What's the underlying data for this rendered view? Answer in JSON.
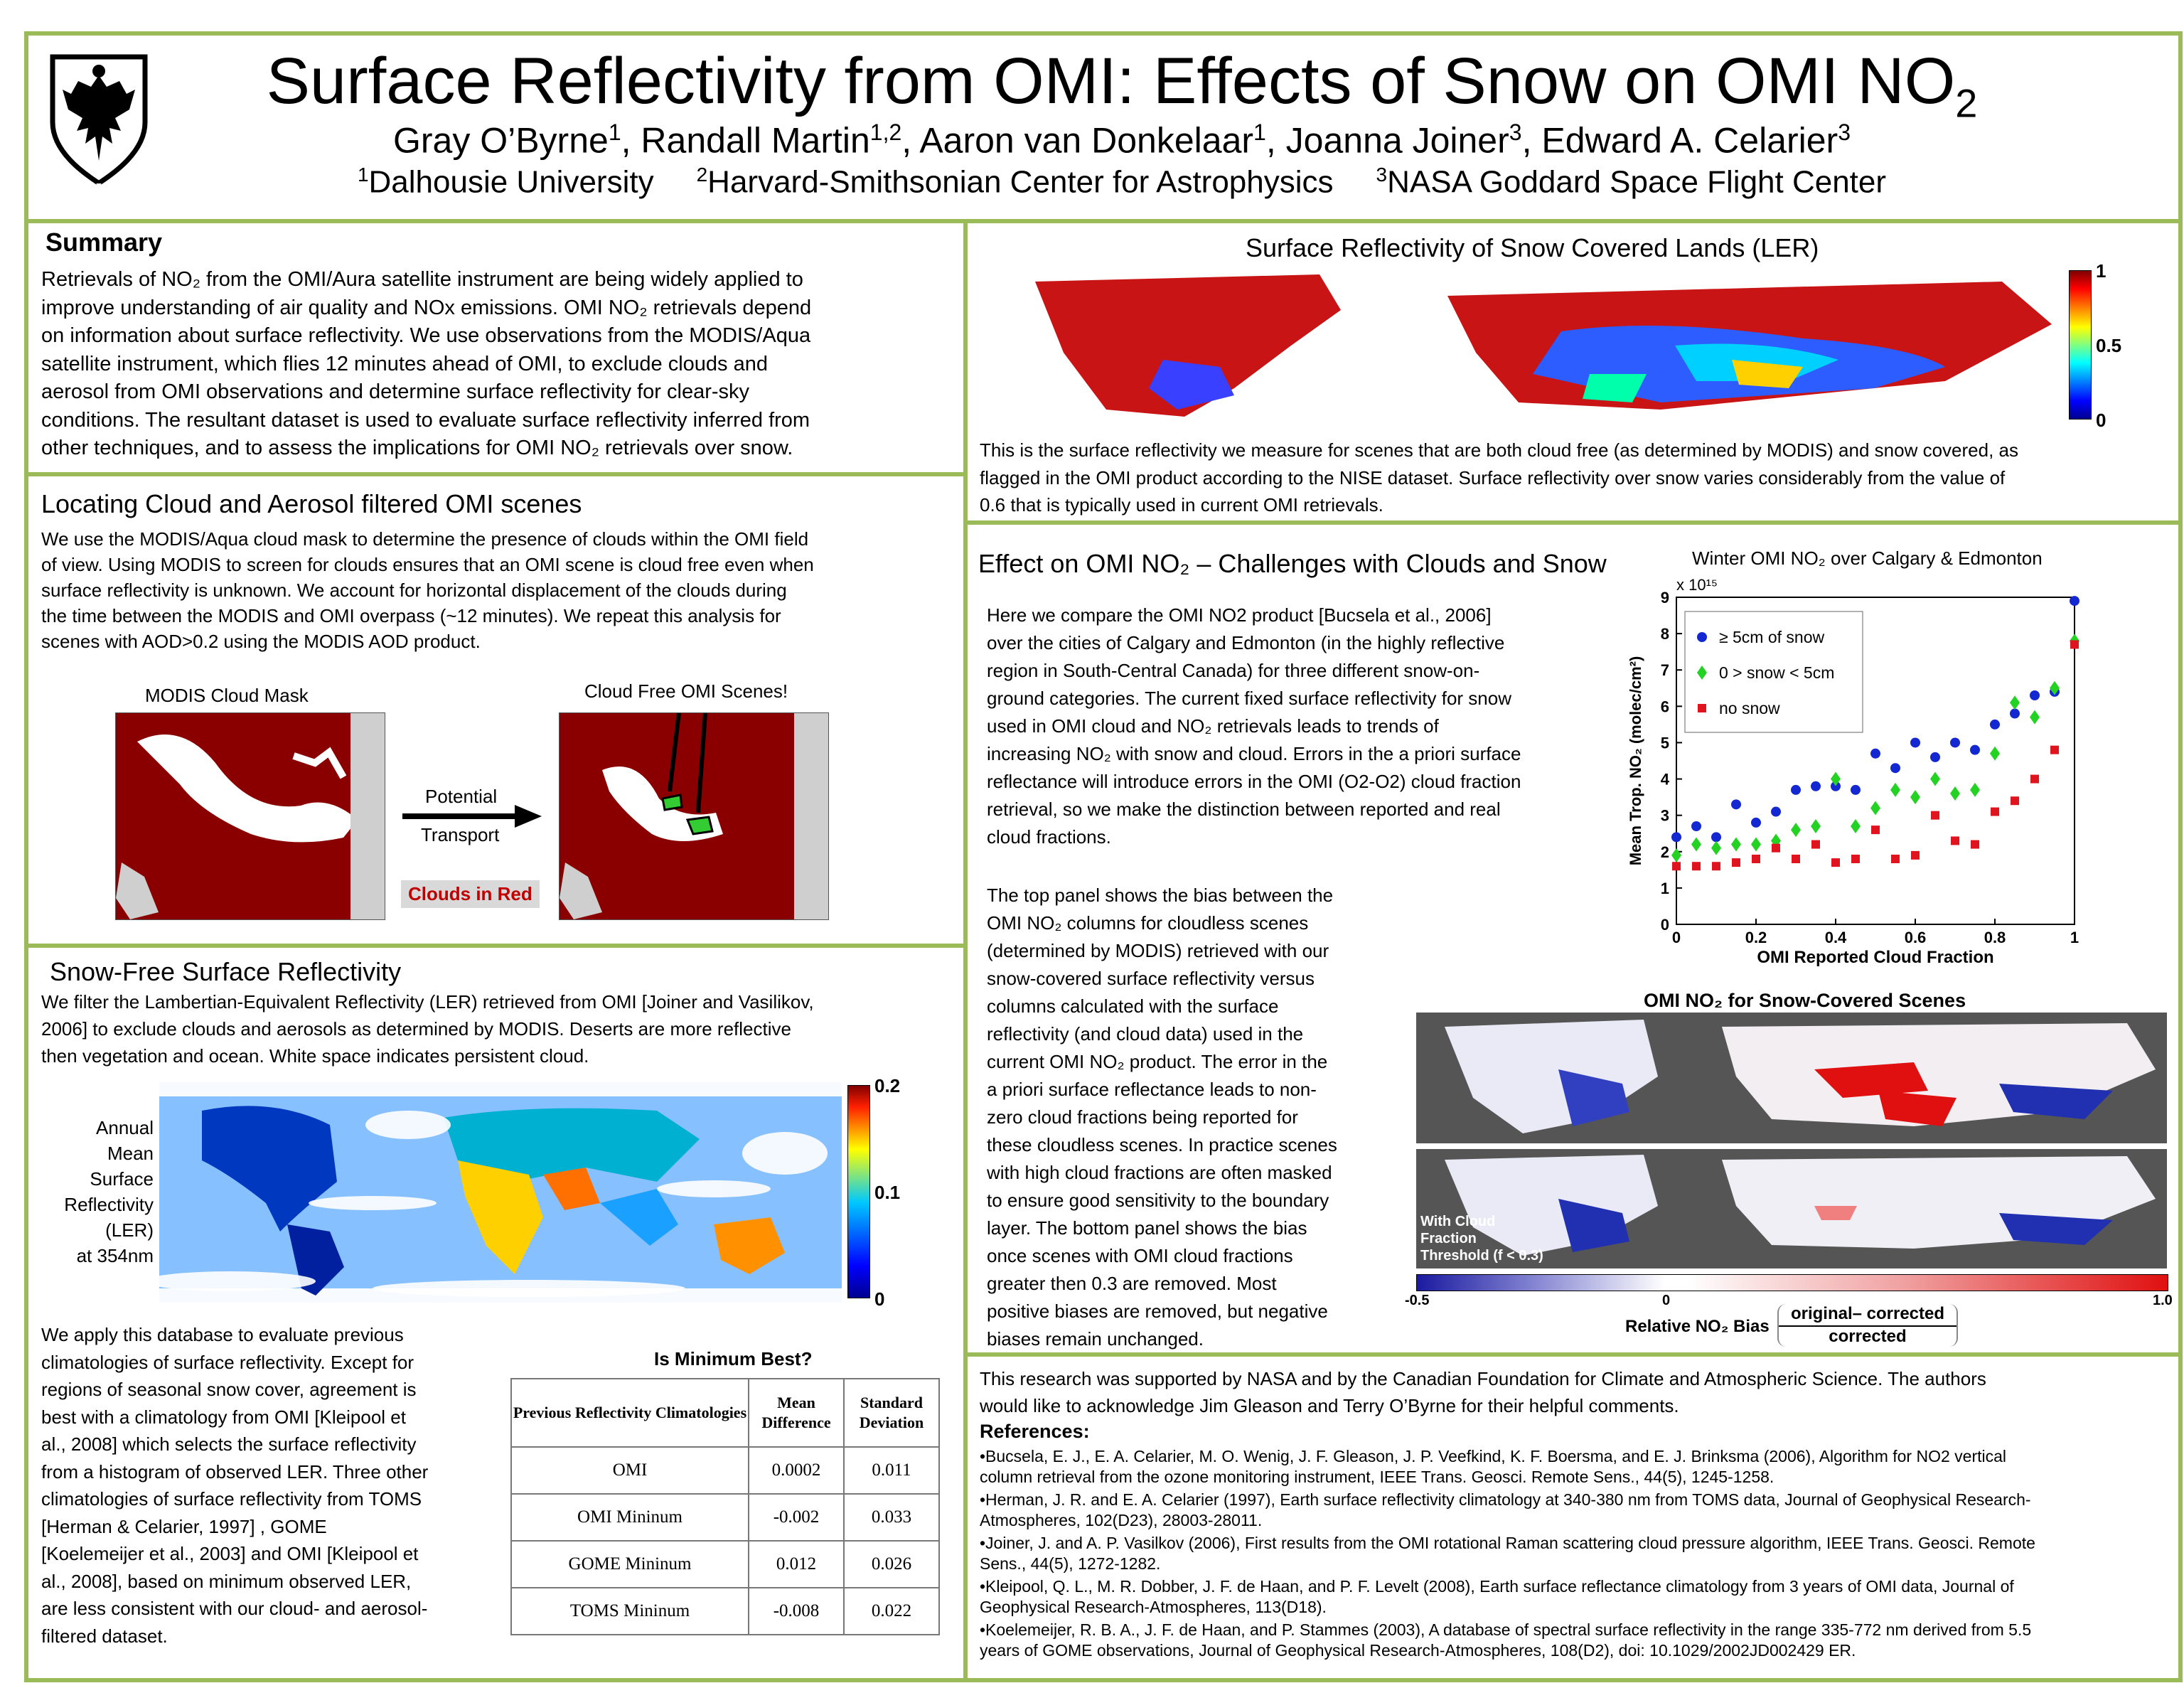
{
  "header": {
    "title_main": "Surface Reflectivity from OMI: Effects of Snow on OMI NO",
    "title_sub": "2",
    "authors": [
      {
        "name": "Gray O’Byrne",
        "sup": "1",
        "sep": ", "
      },
      {
        "name": "Randall Martin",
        "sup": "1,2",
        "sep": ", "
      },
      {
        "name": "Aaron van Donkelaar",
        "sup": "1",
        "sep": ", "
      },
      {
        "name": "Joanna Joiner",
        "sup": "3",
        "sep": ", "
      },
      {
        "name": "Edward A. Celarier",
        "sup": "3",
        "sep": ""
      }
    ],
    "affiliations": [
      {
        "sup": "1",
        "name": "Dalhousie University"
      },
      {
        "sup": "2",
        "name": "Harvard-Smithsonian Center for Astrophysics"
      },
      {
        "sup": "3",
        "name": "NASA Goddard Space Flight Center"
      }
    ]
  },
  "summary": {
    "heading": "Summary",
    "lines": [
      "Retrievals of NO₂ from the OMI/Aura satellite instrument are being widely applied to",
      "improve understanding of air quality and NOx emissions. OMI NO₂ retrievals depend",
      "on information about surface reflectivity.  We use observations from the MODIS/Aqua",
      "satellite instrument, which flies 12 minutes ahead of OMI, to exclude clouds and",
      "aerosol from OMI observations and determine surface reflectivity for clear-sky",
      "conditions.  The resultant dataset is used to evaluate surface reflectivity inferred from",
      "other techniques, and to assess the implications for OMI NO₂ retrievals over snow."
    ]
  },
  "locating": {
    "heading": "Locating Cloud and Aerosol filtered OMI scenes",
    "lines": [
      "We use the MODIS/Aqua cloud mask to determine the presence of clouds within the OMI field",
      "of view. Using MODIS to screen for clouds ensures that an OMI scene is cloud free even when",
      "surface reflectivity is unknown. We account for horizontal displacement of the clouds during",
      "the time between the MODIS and OMI overpass (~12 minutes). We repeat this analysis for",
      "scenes with AOD>0.2 using the MODIS AOD product."
    ],
    "label_left": "MODIS Cloud Mask",
    "label_right": "Cloud Free OMI Scenes!",
    "arrow_top": "Potential",
    "arrow_bottom": "Transport",
    "clouds_label": "Clouds in Red"
  },
  "snowfree": {
    "heading": "Snow-Free Surface Reflectivity",
    "lines": [
      "We filter the Lambertian-Equivalent Reflectivity (LER) retrieved from OMI [Joiner and Vasilikov,",
      "2006] to exclude clouds and aerosols as determined by MODIS. Deserts are more reflective",
      "then vegetation and ocean. White space indicates persistent cloud."
    ],
    "map_label": [
      "Annual",
      "Mean",
      "Surface",
      "Reflectivity",
      "(LER)",
      "at 354nm"
    ],
    "colorbar": [
      "0.2",
      "0.1",
      "0"
    ],
    "apply_lines": [
      "We apply this database to evaluate previous",
      "climatologies of surface reflectivity. Except for",
      "regions of seasonal snow cover, agreement is",
      "best with a climatology from OMI [Kleipool et",
      "al., 2008] which selects the surface reflectivity",
      "from a histogram of observed LER. Three other",
      "climatologies of surface reflectivity from TOMS",
      "[Herman & Celarier, 1997] , GOME",
      "[Koelemeijer et al., 2003] and OMI [Kleipool et",
      "al., 2008], based on minimum observed LER,",
      "are less consistent with our cloud- and aerosol-",
      "filtered dataset."
    ],
    "table_title": "Is Minimum Best?",
    "table_headers": [
      "Previous Reflectivity Climatologies",
      "Mean Difference",
      "Standard Deviation"
    ],
    "table_rows": [
      [
        "OMI",
        "0.0002",
        "0.011"
      ],
      [
        "OMI Mininum",
        "-0.002",
        "0.033"
      ],
      [
        "GOME Mininum",
        "0.012",
        "0.026"
      ],
      [
        "TOMS Mininum",
        "-0.008",
        "0.022"
      ]
    ]
  },
  "snowcovered": {
    "heading": "Surface Reflectivity of Snow Covered Lands (LER)",
    "colorbar": [
      "1",
      "0.5",
      "0"
    ],
    "lines": [
      "This is the surface reflectivity we measure for scenes that are both cloud free (as determined by MODIS) and snow covered, as",
      "flagged in the OMI product according to the NISE dataset. Surface reflectivity over snow varies considerably from the value of",
      "0.6 that is typically used in current OMI retrievals."
    ]
  },
  "effect": {
    "heading": "Effect on OMI NO₂ – Challenges with Clouds and Snow",
    "lines1": [
      "Here we compare the OMI NO2 product [Bucsela et al., 2006]",
      "over the cities of Calgary and Edmonton (in the highly reflective",
      "region in South-Central Canada) for three different snow-on-",
      "ground categories. The current fixed surface reflectivity for snow",
      "used in OMI cloud and NO₂ retrievals leads to trends of",
      "increasing NO₂ with snow and cloud. Errors in the a priori surface",
      "reflectance will introduce errors in the OMI (O2-O2) cloud fraction",
      "retrieval, so we make the distinction between reported and real",
      "cloud fractions."
    ],
    "lines2": [
      "The top panel shows the bias between the",
      "OMI NO₂ columns for cloudless scenes",
      "(determined by MODIS) retrieved with our",
      "snow-covered surface reflectivity versus",
      "columns calculated with the surface",
      "reflectivity (and cloud data) used in the",
      "current OMI NO₂ product. The error in the",
      "a priori surface reflectance leads to non-",
      "zero cloud fractions being reported for",
      "these cloudless scenes. In practice scenes",
      "with high cloud fractions are often masked",
      "to ensure good sensitivity to the boundary",
      "layer. The bottom panel shows the bias",
      "once scenes with OMI cloud fractions",
      "greater then 0.3 are removed. Most",
      "positive biases are removed, but negative",
      "biases remain unchanged."
    ],
    "maps_title": "OMI NO₂ for Snow-Covered Scenes",
    "threshold_label": [
      "With Cloud",
      "Fraction",
      "Threshold (f < 0.3)"
    ],
    "bias_ticks": [
      "-0.5",
      "0",
      "1.0"
    ],
    "bias_label": "Relative NO₂ Bias",
    "bias_num": "original– corrected",
    "bias_den": "corrected"
  },
  "ack": {
    "lines": [
      "This research was supported by NASA and by the Canadian Foundation for Climate and Atmospheric Science. The authors",
      "would like to acknowledge Jim Gleason and Terry O’Byrne for their helpful comments."
    ],
    "refs_heading": "References:",
    "refs": [
      [
        "•Bucsela, E. J., E. A. Celarier, M. O. Wenig, J. F. Gleason, J. P. Veefkind, K. F. Boersma, and E. J. Brinksma (2006), Algorithm for NO2 vertical",
        "column retrieval from the ozone monitoring instrument, IEEE Trans. Geosci. Remote Sens., 44(5), 1245-1258."
      ],
      [
        "•Herman, J. R. and E. A. Celarier (1997), Earth surface reflectivity climatology at 340-380 nm from TOMS data, Journal of Geophysical Research-",
        "Atmospheres, 102(D23), 28003-28011."
      ],
      [
        "•Joiner, J. and A. P. Vasilkov (2006), First results from the OMI rotational Raman scattering cloud pressure algorithm, IEEE Trans. Geosci. Remote",
        "Sens., 44(5), 1272-1282."
      ],
      [
        "•Kleipool, Q. L., M. R. Dobber, J. F. de Haan, and P. F. Levelt (2008), Earth surface reflectance climatology from 3 years of OMI data, Journal of",
        "Geophysical Research-Atmospheres, 113(D18)."
      ],
      [
        "•Koelemeijer, R. B. A., J. F. de Haan, and P. Stammes (2003), A database of spectral surface reflectivity in the range 335-772 nm derived from 5.5",
        "years of GOME observations, Journal of Geophysical Research-Atmospheres, 108(D2), doi: 10.1029/2002JD002429  ER."
      ]
    ]
  },
  "chart_data": {
    "type": "scatter",
    "title": "Winter OMI NO₂ over Calgary & Edmonton",
    "xlabel": "OMI Reported Cloud Fraction",
    "ylabel": "Mean Trop. NO₂ (molec/cm²)",
    "y_exponent": "x 10¹⁵",
    "xlim": [
      0,
      1
    ],
    "ylim": [
      0,
      9
    ],
    "xticks": [
      "0",
      "0.2",
      "0.4",
      "0.6",
      "0.8",
      "1"
    ],
    "yticks": [
      "0",
      "1",
      "2",
      "3",
      "4",
      "5",
      "6",
      "7",
      "8",
      "9"
    ],
    "x": [
      0,
      0.05,
      0.1,
      0.15,
      0.2,
      0.25,
      0.3,
      0.35,
      0.4,
      0.45,
      0.5,
      0.55,
      0.6,
      0.65,
      0.7,
      0.75,
      0.8,
      0.85,
      0.9,
      0.95,
      1.0
    ],
    "series": [
      {
        "name": "≥ 5cm of snow",
        "color": "#1428d2",
        "marker": "circle",
        "values": [
          2.4,
          2.7,
          2.4,
          3.3,
          2.8,
          3.1,
          3.7,
          3.8,
          3.8,
          3.7,
          4.7,
          4.3,
          5.0,
          4.6,
          5.0,
          4.8,
          5.5,
          5.8,
          6.3,
          6.4,
          8.9
        ]
      },
      {
        "name": "0 > snow < 5cm",
        "color": "#23d223",
        "marker": "diamond",
        "values": [
          1.9,
          2.2,
          2.1,
          2.2,
          2.2,
          2.3,
          2.6,
          2.7,
          4.0,
          2.7,
          3.2,
          3.7,
          3.5,
          4.0,
          3.6,
          3.7,
          4.7,
          6.1,
          5.7,
          6.5,
          7.8
        ]
      },
      {
        "name": "no snow",
        "color": "#e0141e",
        "marker": "square",
        "values": [
          1.6,
          1.6,
          1.6,
          1.7,
          1.8,
          2.1,
          1.8,
          2.2,
          1.7,
          1.8,
          2.6,
          1.8,
          1.9,
          3.0,
          2.3,
          2.2,
          3.1,
          3.4,
          4.0,
          4.8,
          7.7
        ]
      }
    ]
  }
}
